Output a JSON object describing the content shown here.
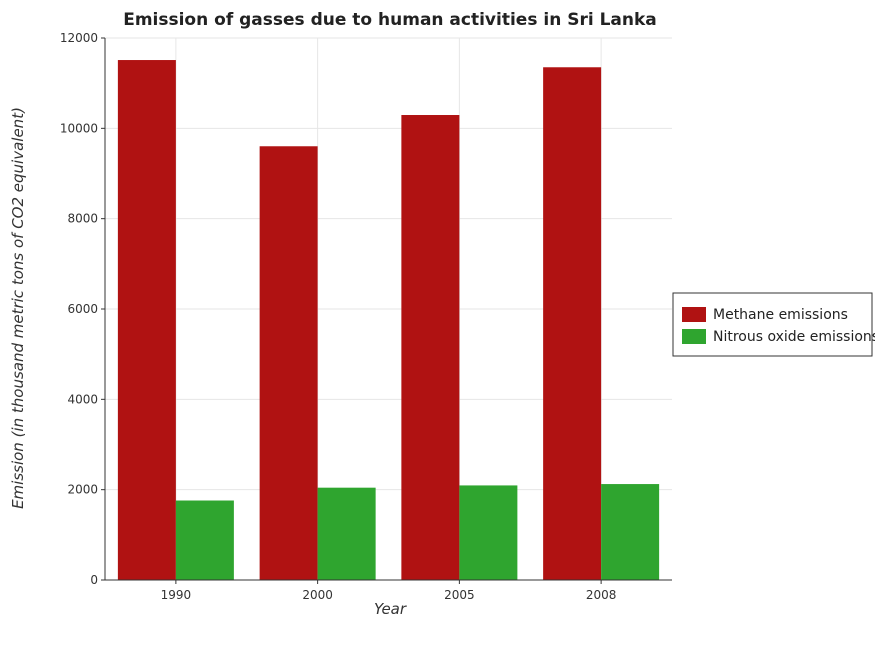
{
  "chart_data": {
    "type": "bar",
    "title": "Emission of gasses due to human activities in Sri Lanka",
    "xlabel": "Year",
    "ylabel": "Emission (in thousand metric tons of CO2 equivalent)",
    "categories": [
      "1990",
      "2000",
      "2005",
      "2008"
    ],
    "series": [
      {
        "name": "Methane emissions",
        "color": "#b01212",
        "values": [
          11512,
          9603,
          10295,
          11352
        ]
      },
      {
        "name": "Nitrous oxide emissions",
        "color": "#2fa52f",
        "values": [
          1760,
          2044,
          2094,
          2124
        ]
      }
    ],
    "ylim": [
      0,
      12000
    ],
    "yticks": [
      0,
      2000,
      4000,
      6000,
      8000,
      10000,
      12000
    ],
    "grid": true,
    "legend_position": "right"
  }
}
